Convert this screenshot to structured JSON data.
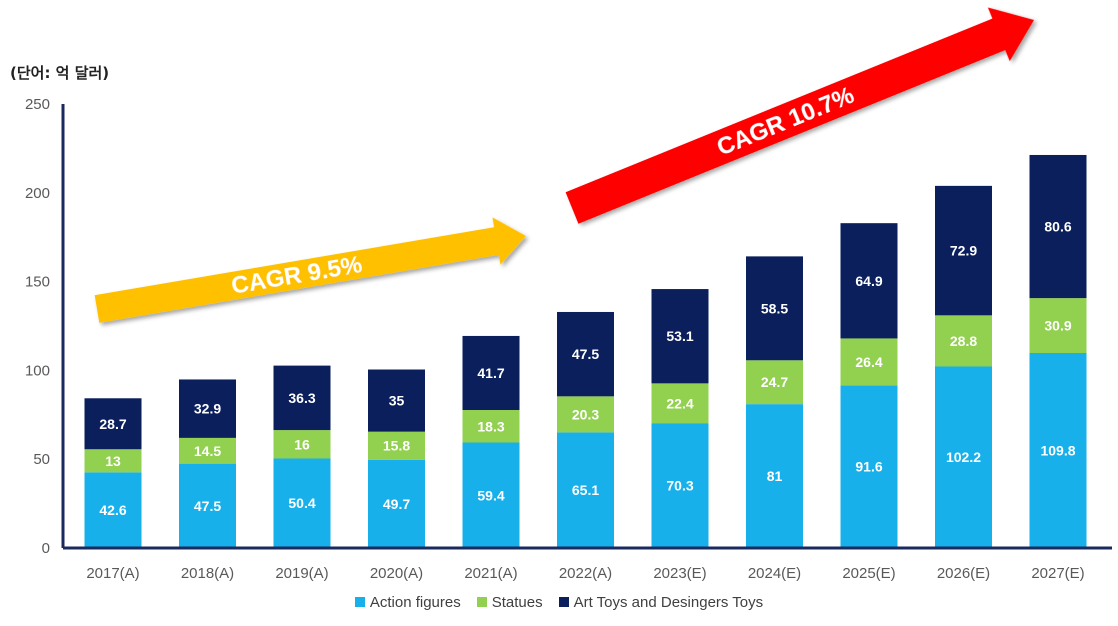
{
  "unit_label": "(단어: 억 달러)",
  "chart_data": {
    "type": "bar",
    "stacked": true,
    "categories": [
      "2017(A)",
      "2018(A)",
      "2019(A)",
      "2020(A)",
      "2021(A)",
      "2022(A)",
      "2023(E)",
      "2024(E)",
      "2025(E)",
      "2026(E)",
      "2027(E)"
    ],
    "series": [
      {
        "name": "Action figures",
        "color": "#17b0eb",
        "values": [
          42.6,
          47.5,
          50.4,
          49.7,
          59.4,
          65.1,
          70.3,
          81,
          91.6,
          102.2,
          109.8
        ]
      },
      {
        "name": "Statues",
        "color": "#92d050",
        "values": [
          13,
          14.5,
          16,
          15.8,
          18.3,
          20.3,
          22.4,
          24.7,
          26.4,
          28.8,
          30.9
        ]
      },
      {
        "name": "Art Toys and Desingers Toys",
        "color": "#0a1f5c",
        "values": [
          28.7,
          32.9,
          36.3,
          35,
          41.7,
          47.5,
          53.1,
          58.5,
          64.9,
          72.9,
          80.6
        ]
      }
    ],
    "ylim": [
      0,
      250
    ],
    "yticks": [
      0,
      50,
      100,
      150,
      200,
      250
    ],
    "legend_position": "bottom",
    "grid": false,
    "annotations": [
      {
        "text": "CAGR 9.5%",
        "color": "#ffc000",
        "from": "2017(A)",
        "to": "2021(A)"
      },
      {
        "text": "CAGR 10.7%",
        "color": "#ff0000",
        "from": "2022(A)",
        "to": "2027(E)"
      }
    ]
  }
}
